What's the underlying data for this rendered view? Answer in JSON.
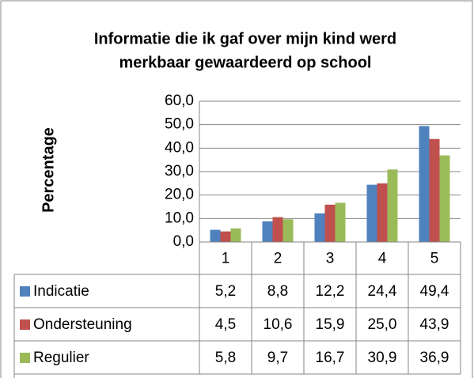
{
  "chart_data": {
    "type": "bar",
    "title": [
      "Informatie die ik gaf over mijn kind werd",
      "merkbaar gewaardeerd op school"
    ],
    "y_label": "Percentage",
    "categories": [
      "1",
      "2",
      "3",
      "4",
      "5"
    ],
    "series": [
      {
        "name": "Indicatie",
        "color": "#4f81bd",
        "values": [
          5.2,
          8.8,
          12.2,
          24.4,
          49.4
        ],
        "value_labels": [
          "5,2",
          "8,8",
          "12,2",
          "24,4",
          "49,4"
        ]
      },
      {
        "name": "Ondersteuning",
        "color": "#c0504d",
        "values": [
          4.5,
          10.6,
          15.9,
          25.0,
          43.9
        ],
        "value_labels": [
          "4,5",
          "10,6",
          "15,9",
          "25,0",
          "43,9"
        ]
      },
      {
        "name": "Regulier",
        "color": "#9bbb59",
        "values": [
          5.8,
          9.7,
          16.7,
          30.9,
          36.9
        ],
        "value_labels": [
          "5,8",
          "9,7",
          "16,7",
          "30,9",
          "36,9"
        ]
      }
    ],
    "ylim": [
      0,
      60
    ],
    "yticks": [
      {
        "value": 0,
        "label": "0,0"
      },
      {
        "value": 10,
        "label": "10,0"
      },
      {
        "value": 20,
        "label": "20,0"
      },
      {
        "value": 30,
        "label": "30,0"
      },
      {
        "value": 40,
        "label": "40,0"
      },
      {
        "value": 50,
        "label": "50,0"
      },
      {
        "value": 60,
        "label": "60,0"
      }
    ],
    "grid": true
  }
}
